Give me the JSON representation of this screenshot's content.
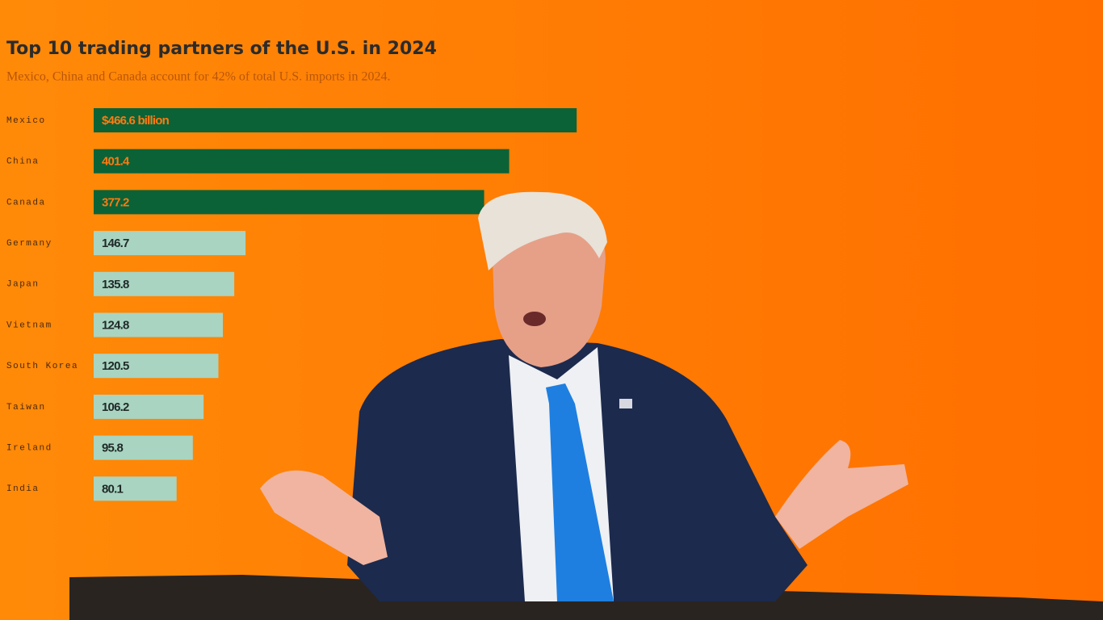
{
  "chart_data": {
    "type": "bar",
    "orientation": "horizontal",
    "title": "Top 10 trading partners of the U.S. in 2024",
    "subtitle": "Mexico, China and Canada account for 42% of total U.S. imports in 2024.",
    "categories": [
      "Mexico",
      "China",
      "Canada",
      "Germany",
      "Japan",
      "Vietnam",
      "South Korea",
      "Taiwan",
      "Ireland",
      "India"
    ],
    "values": [
      466.6,
      401.4,
      377.2,
      146.7,
      135.8,
      124.8,
      120.5,
      106.2,
      95.8,
      80.1
    ],
    "value_labels": [
      "$466.6 billion",
      "401.4",
      "377.2",
      "146.7",
      "135.8",
      "124.8",
      "120.5",
      "106.2",
      "95.8",
      "80.1"
    ],
    "colors": [
      "#0b6236",
      "#0b6236",
      "#0b6236",
      "#a9d4c1",
      "#a9d4c1",
      "#a9d4c1",
      "#a9d4c1",
      "#a9d4c1",
      "#a9d4c1",
      "#a9d4c1"
    ],
    "xlim": [
      0,
      500
    ]
  }
}
